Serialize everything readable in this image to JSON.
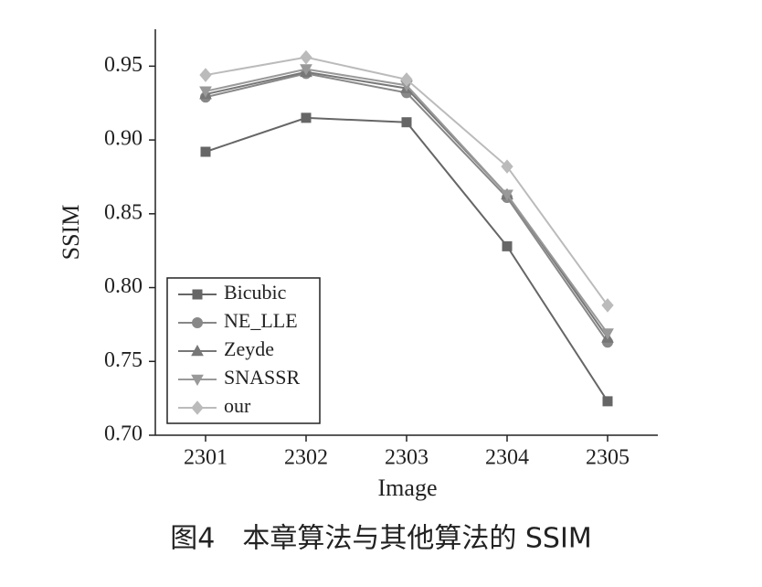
{
  "chart_data": {
    "type": "line",
    "caption": "图4　本章算法与其他算法的 SSIM",
    "x_label": "Image",
    "y_label": "SSIM",
    "categories": [
      "2301",
      "2302",
      "2303",
      "2304",
      "2305"
    ],
    "series": [
      {
        "name": "Bicubic",
        "color": "#666666",
        "marker": "square",
        "values": [
          0.892,
          0.915,
          0.912,
          0.828,
          0.723
        ]
      },
      {
        "name": "NE_LLE",
        "color": "#888888",
        "marker": "circle",
        "values": [
          0.929,
          0.945,
          0.932,
          0.861,
          0.763
        ]
      },
      {
        "name": "Zeyde",
        "color": "#777777",
        "marker": "triangle-up",
        "values": [
          0.931,
          0.946,
          0.935,
          0.863,
          0.766
        ]
      },
      {
        "name": "SNASSR",
        "color": "#999999",
        "marker": "triangle-down",
        "values": [
          0.933,
          0.948,
          0.937,
          0.863,
          0.769
        ]
      },
      {
        "name": "our",
        "color": "#bbbbbb",
        "marker": "diamond",
        "values": [
          0.944,
          0.956,
          0.941,
          0.882,
          0.788
        ]
      }
    ],
    "ylim": [
      0.7,
      0.975
    ],
    "yticks": [
      {
        "value": 0.7,
        "label": "0.70"
      },
      0.75,
      {
        "value": 0.8,
        "label": "0.80"
      },
      0.85,
      {
        "value": 0.9,
        "label": "0.90"
      },
      0.95
    ],
    "legend": "lower left",
    "grid": false
  }
}
